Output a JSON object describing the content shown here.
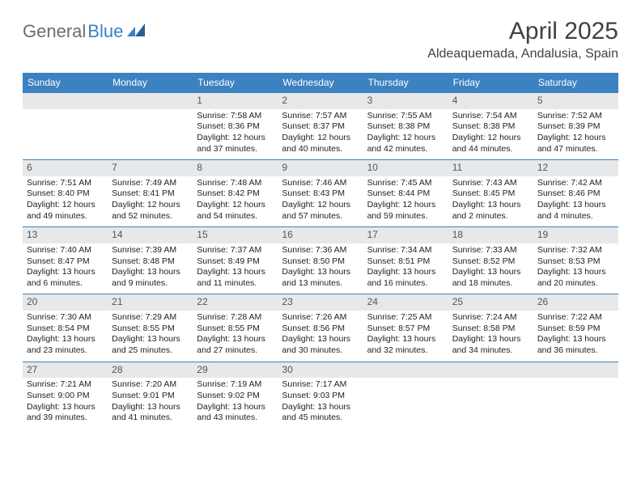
{
  "brand": {
    "part1": "General",
    "part2": "Blue"
  },
  "title": "April 2025",
  "location": "Aldeaquemada, Andalusia, Spain",
  "day_headers": [
    "Sunday",
    "Monday",
    "Tuesday",
    "Wednesday",
    "Thursday",
    "Friday",
    "Saturday"
  ],
  "colors": {
    "header_bg": "#3c81c0",
    "cell_header_bg": "#e7e8e9",
    "row_border": "#3c81c0",
    "text": "#222222",
    "title_color": "#414141"
  },
  "days": [
    {
      "n": "1",
      "sunrise": "Sunrise: 7:58 AM",
      "sunset": "Sunset: 8:36 PM",
      "day": "Daylight: 12 hours and 37 minutes."
    },
    {
      "n": "2",
      "sunrise": "Sunrise: 7:57 AM",
      "sunset": "Sunset: 8:37 PM",
      "day": "Daylight: 12 hours and 40 minutes."
    },
    {
      "n": "3",
      "sunrise": "Sunrise: 7:55 AM",
      "sunset": "Sunset: 8:38 PM",
      "day": "Daylight: 12 hours and 42 minutes."
    },
    {
      "n": "4",
      "sunrise": "Sunrise: 7:54 AM",
      "sunset": "Sunset: 8:38 PM",
      "day": "Daylight: 12 hours and 44 minutes."
    },
    {
      "n": "5",
      "sunrise": "Sunrise: 7:52 AM",
      "sunset": "Sunset: 8:39 PM",
      "day": "Daylight: 12 hours and 47 minutes."
    },
    {
      "n": "6",
      "sunrise": "Sunrise: 7:51 AM",
      "sunset": "Sunset: 8:40 PM",
      "day": "Daylight: 12 hours and 49 minutes."
    },
    {
      "n": "7",
      "sunrise": "Sunrise: 7:49 AM",
      "sunset": "Sunset: 8:41 PM",
      "day": "Daylight: 12 hours and 52 minutes."
    },
    {
      "n": "8",
      "sunrise": "Sunrise: 7:48 AM",
      "sunset": "Sunset: 8:42 PM",
      "day": "Daylight: 12 hours and 54 minutes."
    },
    {
      "n": "9",
      "sunrise": "Sunrise: 7:46 AM",
      "sunset": "Sunset: 8:43 PM",
      "day": "Daylight: 12 hours and 57 minutes."
    },
    {
      "n": "10",
      "sunrise": "Sunrise: 7:45 AM",
      "sunset": "Sunset: 8:44 PM",
      "day": "Daylight: 12 hours and 59 minutes."
    },
    {
      "n": "11",
      "sunrise": "Sunrise: 7:43 AM",
      "sunset": "Sunset: 8:45 PM",
      "day": "Daylight: 13 hours and 2 minutes."
    },
    {
      "n": "12",
      "sunrise": "Sunrise: 7:42 AM",
      "sunset": "Sunset: 8:46 PM",
      "day": "Daylight: 13 hours and 4 minutes."
    },
    {
      "n": "13",
      "sunrise": "Sunrise: 7:40 AM",
      "sunset": "Sunset: 8:47 PM",
      "day": "Daylight: 13 hours and 6 minutes."
    },
    {
      "n": "14",
      "sunrise": "Sunrise: 7:39 AM",
      "sunset": "Sunset: 8:48 PM",
      "day": "Daylight: 13 hours and 9 minutes."
    },
    {
      "n": "15",
      "sunrise": "Sunrise: 7:37 AM",
      "sunset": "Sunset: 8:49 PM",
      "day": "Daylight: 13 hours and 11 minutes."
    },
    {
      "n": "16",
      "sunrise": "Sunrise: 7:36 AM",
      "sunset": "Sunset: 8:50 PM",
      "day": "Daylight: 13 hours and 13 minutes."
    },
    {
      "n": "17",
      "sunrise": "Sunrise: 7:34 AM",
      "sunset": "Sunset: 8:51 PM",
      "day": "Daylight: 13 hours and 16 minutes."
    },
    {
      "n": "18",
      "sunrise": "Sunrise: 7:33 AM",
      "sunset": "Sunset: 8:52 PM",
      "day": "Daylight: 13 hours and 18 minutes."
    },
    {
      "n": "19",
      "sunrise": "Sunrise: 7:32 AM",
      "sunset": "Sunset: 8:53 PM",
      "day": "Daylight: 13 hours and 20 minutes."
    },
    {
      "n": "20",
      "sunrise": "Sunrise: 7:30 AM",
      "sunset": "Sunset: 8:54 PM",
      "day": "Daylight: 13 hours and 23 minutes."
    },
    {
      "n": "21",
      "sunrise": "Sunrise: 7:29 AM",
      "sunset": "Sunset: 8:55 PM",
      "day": "Daylight: 13 hours and 25 minutes."
    },
    {
      "n": "22",
      "sunrise": "Sunrise: 7:28 AM",
      "sunset": "Sunset: 8:55 PM",
      "day": "Daylight: 13 hours and 27 minutes."
    },
    {
      "n": "23",
      "sunrise": "Sunrise: 7:26 AM",
      "sunset": "Sunset: 8:56 PM",
      "day": "Daylight: 13 hours and 30 minutes."
    },
    {
      "n": "24",
      "sunrise": "Sunrise: 7:25 AM",
      "sunset": "Sunset: 8:57 PM",
      "day": "Daylight: 13 hours and 32 minutes."
    },
    {
      "n": "25",
      "sunrise": "Sunrise: 7:24 AM",
      "sunset": "Sunset: 8:58 PM",
      "day": "Daylight: 13 hours and 34 minutes."
    },
    {
      "n": "26",
      "sunrise": "Sunrise: 7:22 AM",
      "sunset": "Sunset: 8:59 PM",
      "day": "Daylight: 13 hours and 36 minutes."
    },
    {
      "n": "27",
      "sunrise": "Sunrise: 7:21 AM",
      "sunset": "Sunset: 9:00 PM",
      "day": "Daylight: 13 hours and 39 minutes."
    },
    {
      "n": "28",
      "sunrise": "Sunrise: 7:20 AM",
      "sunset": "Sunset: 9:01 PM",
      "day": "Daylight: 13 hours and 41 minutes."
    },
    {
      "n": "29",
      "sunrise": "Sunrise: 7:19 AM",
      "sunset": "Sunset: 9:02 PM",
      "day": "Daylight: 13 hours and 43 minutes."
    },
    {
      "n": "30",
      "sunrise": "Sunrise: 7:17 AM",
      "sunset": "Sunset: 9:03 PM",
      "day": "Daylight: 13 hours and 45 minutes."
    }
  ],
  "grid": [
    [
      null,
      null,
      0,
      1,
      2,
      3,
      4
    ],
    [
      5,
      6,
      7,
      8,
      9,
      10,
      11
    ],
    [
      12,
      13,
      14,
      15,
      16,
      17,
      18
    ],
    [
      19,
      20,
      21,
      22,
      23,
      24,
      25
    ],
    [
      26,
      27,
      28,
      29,
      null,
      null,
      null
    ]
  ]
}
